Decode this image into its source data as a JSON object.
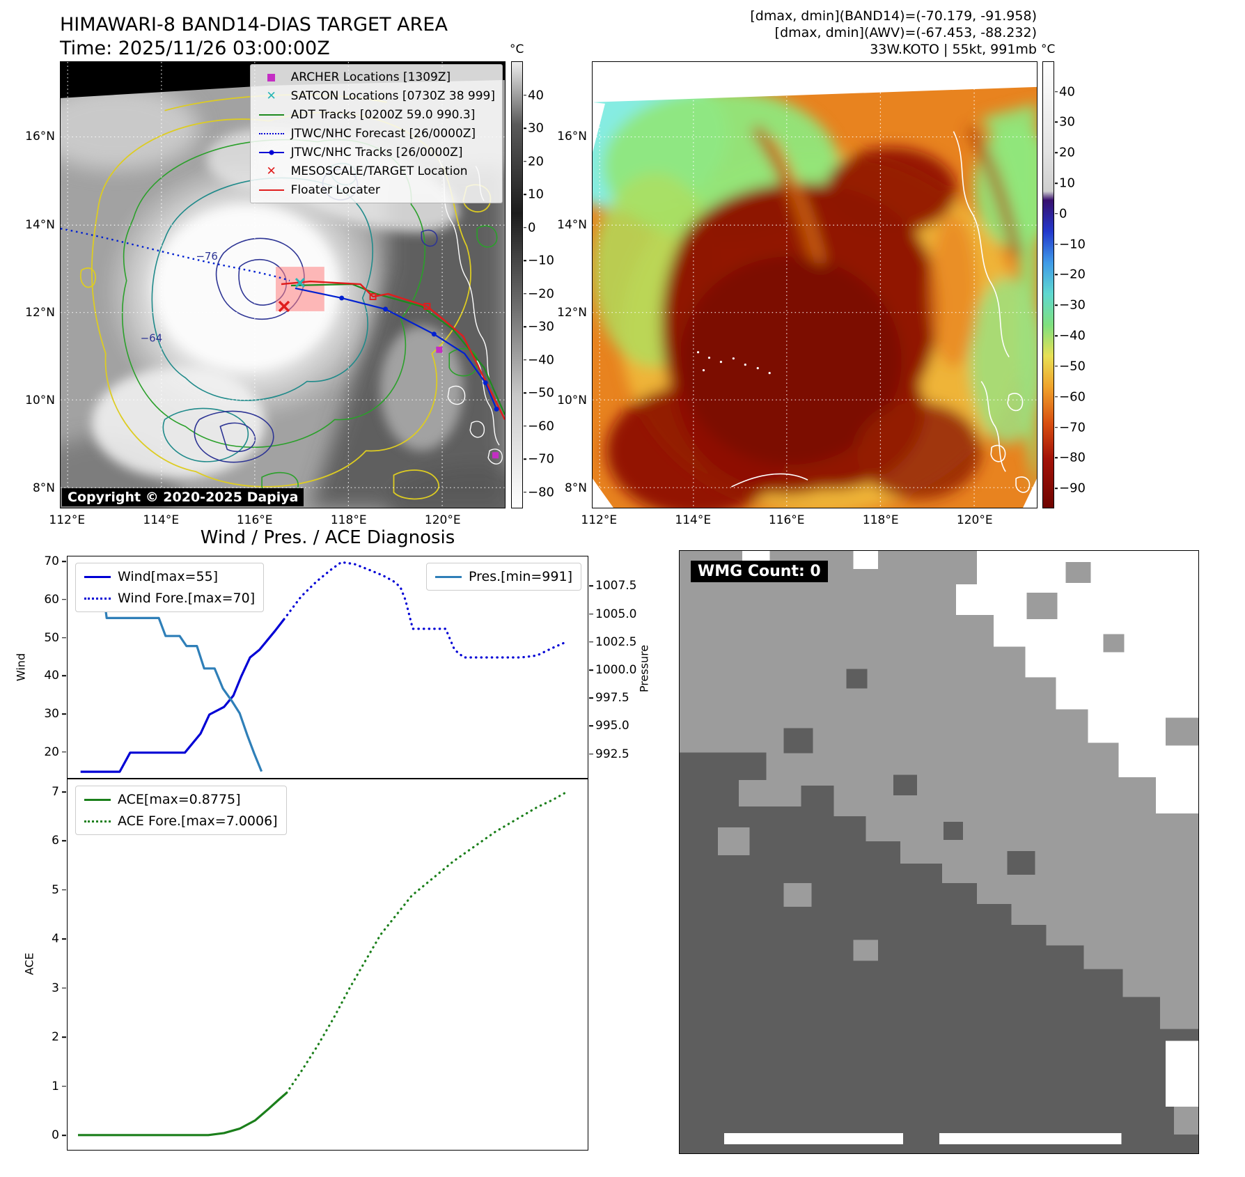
{
  "band14_panel": {
    "title": "HIMAWARI-8 BAND14-DIAS TARGET AREA",
    "time_line": "Time: 2025/11/26 03:00:00Z",
    "copyright": "Copyright © 2020-2025 Dapiya",
    "contour_labels": {
      "inner": "−76",
      "outer": "−64"
    },
    "legend": [
      {
        "label": "ARCHER Locations [1309Z]",
        "marker": "square",
        "color": "#c42ec4"
      },
      {
        "label": "SATCON Locations [0730Z 38 999]",
        "marker": "x",
        "color": "#29b6b6"
      },
      {
        "label": "ADT Tracks [0200Z 59.0 990.3]",
        "marker": "line",
        "color": "#1e8a1e"
      },
      {
        "label": "JTWC/NHC Forecast [26/0000Z]",
        "marker": "dotted",
        "color": "#0000d5"
      },
      {
        "label": "JTWC/NHC Tracks [26/0000Z]",
        "marker": "line-dot",
        "color": "#0000d5"
      },
      {
        "label": "MESOSCALE/TARGET Location",
        "marker": "x",
        "color": "#e01d1d"
      },
      {
        "label": "Floater Locater",
        "marker": "line",
        "color": "#e01d1d"
      }
    ],
    "lat_ticks": [
      "16°N",
      "14°N",
      "12°N",
      "10°N",
      "8°N"
    ],
    "lon_ticks": [
      "112°E",
      "114°E",
      "116°E",
      "118°E",
      "120°E"
    ],
    "colorbar": {
      "unit": "°C",
      "ticks": [
        "40",
        "30",
        "20",
        "10",
        "0",
        "−10",
        "−20",
        "−30",
        "−40",
        "−50",
        "−60",
        "−70",
        "−80"
      ],
      "gradient": [
        "#ededed 0%",
        "#5a5a5a 14%",
        "#1c1c1c 34%",
        "#6e6e6e 55%",
        "#c9c9c9 75%",
        "#ffffff 100%"
      ]
    }
  },
  "awv_panel": {
    "header_lines": [
      "[dmax, dmin](BAND14)=(-70.179, -91.958)",
      "[dmax, dmin](AWV)=(-67.453, -88.232)",
      "33W.KOTO | 55kt, 991mb"
    ],
    "lat_ticks": [
      "16°N",
      "14°N",
      "12°N",
      "10°N",
      "8°N"
    ],
    "lon_ticks": [
      "112°E",
      "114°E",
      "116°E",
      "118°E",
      "120°E"
    ],
    "colorbar": {
      "unit": "°C",
      "ticks": [
        "40",
        "30",
        "20",
        "10",
        "0",
        "−10",
        "−20",
        "−30",
        "−40",
        "−50",
        "−60",
        "−70",
        "−80",
        "−90"
      ],
      "gradient": [
        "#ffffff 0%",
        "#e3e3e3 20%",
        "#cfcfcf 29%",
        "#38106e 31%",
        "#2338cc 38%",
        "#3f9ae8 45%",
        "#5fd8d0 52%",
        "#7fe07f 59%",
        "#e8e055 66%",
        "#efa22b 73%",
        "#d84f10 81%",
        "#a31208 89%",
        "#6f0400 100%"
      ]
    }
  },
  "wmg_panel": {
    "count_label": "WMG Count: 0"
  },
  "chart_data": [
    {
      "type": "line",
      "title": "Wind / Pres. / ACE Diagnosis",
      "ylabel": "Wind",
      "ylabel_right": "Pressure",
      "yticks_left": [
        "20",
        "30",
        "40",
        "50",
        "60",
        "70"
      ],
      "yticks_right": [
        "992.5",
        "995.0",
        "997.5",
        "1000.0",
        "1002.5",
        "1005.0",
        "1007.5"
      ],
      "ylim_left": [
        13,
        71.5
      ],
      "ylim_right": [
        990.3,
        1010.2
      ],
      "legend_left": [
        {
          "label": "Wind[max=55]",
          "color": "#0000d5",
          "style": "solid"
        },
        {
          "label": "Wind Fore.[max=70]",
          "color": "#0000d5",
          "style": "dotted"
        }
      ],
      "legend_right": [
        {
          "label": "Pres.[min=991]",
          "color": "#2f7fb8",
          "style": "solid"
        }
      ],
      "series": [
        {
          "name": "wind-observed",
          "axis": "left",
          "color": "#0000d5",
          "style": "solid",
          "x": [
            0.025,
            0.1,
            0.12,
            0.225,
            0.255,
            0.272,
            0.3,
            0.318,
            0.333,
            0.35,
            0.368,
            0.398,
            0.415
          ],
          "y": [
            15,
            15,
            20,
            20,
            25,
            30,
            32,
            35,
            40,
            45,
            47,
            52,
            55
          ]
        },
        {
          "name": "wind-forecast",
          "axis": "left",
          "color": "#0000d5",
          "style": "dotted",
          "x": [
            0.415,
            0.448,
            0.478,
            0.505,
            0.525,
            0.55,
            0.578,
            0.605,
            0.625,
            0.638,
            0.648,
            0.662,
            0.725,
            0.742,
            0.76,
            0.87,
            0.9,
            0.93,
            0.955
          ],
          "y": [
            55,
            61,
            65,
            68,
            70,
            69.5,
            68,
            66.5,
            65,
            63.5,
            60,
            52.5,
            52.5,
            47,
            45,
            45,
            45.5,
            47.5,
            49
          ]
        },
        {
          "name": "pressure",
          "axis": "right",
          "color": "#2f7fb8",
          "style": "solid",
          "x": [
            0.02,
            0.062,
            0.075,
            0.175,
            0.188,
            0.215,
            0.228,
            0.248,
            0.262,
            0.282,
            0.298,
            0.315,
            0.33,
            0.345,
            0.358,
            0.372
          ],
          "y": [
            1009.5,
            1009.5,
            1004.7,
            1004.7,
            1003.1,
            1003.1,
            1002.2,
            1002.2,
            1000.2,
            1000.2,
            998.4,
            997.3,
            996.2,
            994.2,
            992.6,
            991.0
          ]
        }
      ]
    },
    {
      "type": "line",
      "ylabel": "ACE",
      "yticks_left": [
        "0",
        "1",
        "2",
        "3",
        "4",
        "5",
        "6",
        "7"
      ],
      "ylim_left": [
        -0.31,
        7.27
      ],
      "legend_left": [
        {
          "label": "ACE[max=0.8775]",
          "color": "#1b7f1b",
          "style": "solid"
        },
        {
          "label": "ACE Fore.[max=7.0006]",
          "color": "#1b7f1b",
          "style": "dotted"
        }
      ],
      "series": [
        {
          "name": "ace-observed",
          "axis": "left",
          "color": "#1b7f1b",
          "style": "solid",
          "x": [
            0.02,
            0.27,
            0.3,
            0.33,
            0.36,
            0.385,
            0.405,
            0.42
          ],
          "y": [
            0.02,
            0.02,
            0.06,
            0.15,
            0.32,
            0.55,
            0.74,
            0.88
          ]
        },
        {
          "name": "ace-forecast",
          "axis": "left",
          "color": "#1b7f1b",
          "style": "dotted",
          "x": [
            0.42,
            0.45,
            0.48,
            0.51,
            0.54,
            0.57,
            0.6,
            0.63,
            0.66,
            0.7,
            0.74,
            0.78,
            0.82,
            0.86,
            0.9,
            0.93,
            0.955
          ],
          "y": [
            0.88,
            1.35,
            1.85,
            2.4,
            3.0,
            3.55,
            4.1,
            4.5,
            4.9,
            5.25,
            5.6,
            5.9,
            6.2,
            6.45,
            6.7,
            6.85,
            7.0
          ]
        }
      ]
    }
  ]
}
